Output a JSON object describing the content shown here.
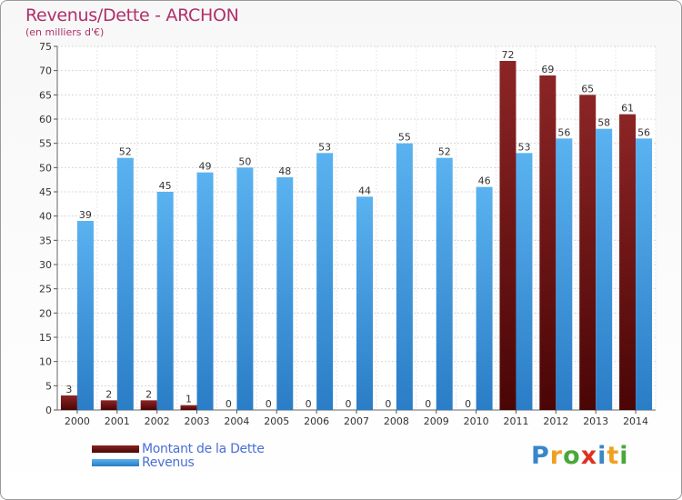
{
  "title": "Revenus/Dette - ARCHON",
  "subtitle": "(en milliers d'€)",
  "legend": [
    {
      "label": "Montant de la Dette",
      "color": "#6e1010"
    },
    {
      "label": "Revenus",
      "color": "#3f9be0"
    }
  ],
  "logo": {
    "letters": [
      {
        "ch": "P",
        "color": "#3a86c8"
      },
      {
        "ch": "r",
        "color": "#f0a020"
      },
      {
        "ch": "o",
        "color": "#49a83a"
      },
      {
        "ch": "x",
        "color": "#e03020"
      },
      {
        "ch": "i",
        "color": "#3a86c8"
      },
      {
        "ch": "t",
        "color": "#f0a020"
      },
      {
        "ch": "i",
        "color": "#49a83a"
      }
    ]
  },
  "chart_data": {
    "type": "bar",
    "categories": [
      "2000",
      "2001",
      "2002",
      "2003",
      "2004",
      "2005",
      "2006",
      "2007",
      "2008",
      "2009",
      "2010",
      "2011",
      "2012",
      "2013",
      "2014"
    ],
    "series": [
      {
        "name": "Montant de la Dette",
        "color": "#6e1010",
        "values": [
          3,
          2,
          2,
          1,
          0,
          0,
          0,
          0,
          0,
          0,
          0,
          72,
          69,
          65,
          61
        ]
      },
      {
        "name": "Revenus",
        "color": "#3f9be0",
        "values": [
          39,
          52,
          45,
          49,
          50,
          48,
          53,
          44,
          55,
          52,
          46,
          53,
          56,
          58,
          56
        ]
      }
    ],
    "ylim": [
      0,
      75
    ],
    "yticks": [
      0,
      5,
      10,
      15,
      20,
      25,
      30,
      35,
      40,
      45,
      50,
      55,
      60,
      65,
      70,
      75
    ],
    "grid": true,
    "legend_position": "bottom-left"
  }
}
